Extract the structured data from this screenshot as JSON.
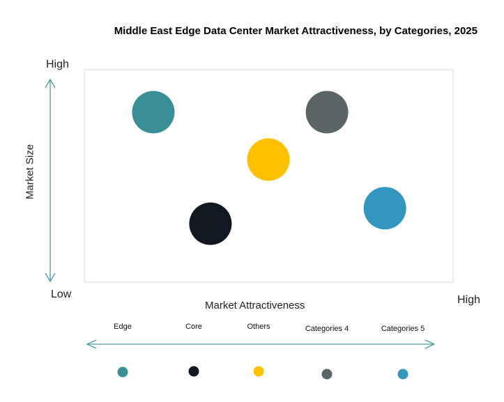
{
  "chart_data": {
    "type": "scatter",
    "title": "Middle East Edge Data Center Market Attractiveness,  by Categories, 2025",
    "xlabel": "Market Attractiveness",
    "ylabel": "Market Size",
    "x_low_label": "Low",
    "x_high_label": "High",
    "y_high_label": "High",
    "xlim": [
      0,
      100
    ],
    "ylim": [
      0,
      100
    ],
    "grid": false,
    "legend_placement": "bottom",
    "series": [
      {
        "name": "Edge",
        "x": 18.7,
        "y": 80.0,
        "color": "#3a8f96"
      },
      {
        "name": "Core",
        "x": 34.2,
        "y": 27.5,
        "color": "#111820"
      },
      {
        "name": "Others",
        "x": 49.9,
        "y": 57.7,
        "color": "#ffc000"
      },
      {
        "name": "Categories 4",
        "x": 65.8,
        "y": 80.0,
        "color": "#5a6566"
      },
      {
        "name": "Categories 5",
        "x": 81.5,
        "y": 34.8,
        "color": "#3396bf"
      }
    ]
  }
}
